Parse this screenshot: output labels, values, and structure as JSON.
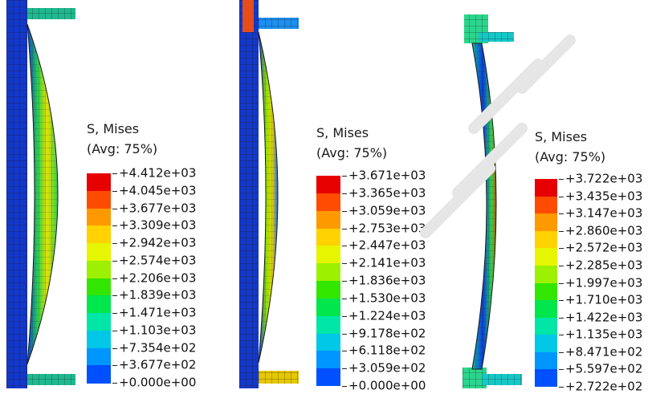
{
  "panels": [
    {
      "legend": {
        "title": "S, Mises",
        "subtitle": "(Avg: 75%)",
        "values": [
          "+4.412e+03",
          "+4.045e+03",
          "+3.677e+03",
          "+3.309e+03",
          "+2.942e+03",
          "+2.574e+03",
          "+2.206e+03",
          "+1.839e+03",
          "+1.471e+03",
          "+1.103e+03",
          "+7.354e+02",
          "+3.677e+02",
          "+0.000e+00"
        ]
      }
    },
    {
      "legend": {
        "title": "S, Mises",
        "subtitle": "(Avg: 75%)",
        "values": [
          "+3.671e+03",
          "+3.365e+03",
          "+3.059e+03",
          "+2.753e+03",
          "+2.447e+03",
          "+2.141e+03",
          "+1.836e+03",
          "+1.530e+03",
          "+1.224e+03",
          "+9.178e+02",
          "+6.118e+02",
          "+3.059e+02",
          "+0.000e+00"
        ]
      }
    },
    {
      "legend": {
        "title": "S, Mises",
        "subtitle": "(Avg: 75%)",
        "values": [
          "+3.722e+03",
          "+3.435e+03",
          "+3.147e+03",
          "+2.860e+03",
          "+2.572e+03",
          "+2.285e+03",
          "+1.997e+03",
          "+1.710e+03",
          "+1.422e+03",
          "+1.135e+03",
          "+8.471e+02",
          "+5.597e+02",
          "+2.722e+02"
        ]
      }
    }
  ],
  "colormap": [
    "#e60000",
    "#ff4c00",
    "#ff9900",
    "#ffd200",
    "#e6f500",
    "#9cf000",
    "#33e600",
    "#00e64d",
    "#00e6a6",
    "#00c8e6",
    "#0096ff",
    "#0050ff",
    "#0000e6"
  ],
  "colors": {
    "mesh_line": "#1a1a1a",
    "column_blue": "#1438c8"
  }
}
